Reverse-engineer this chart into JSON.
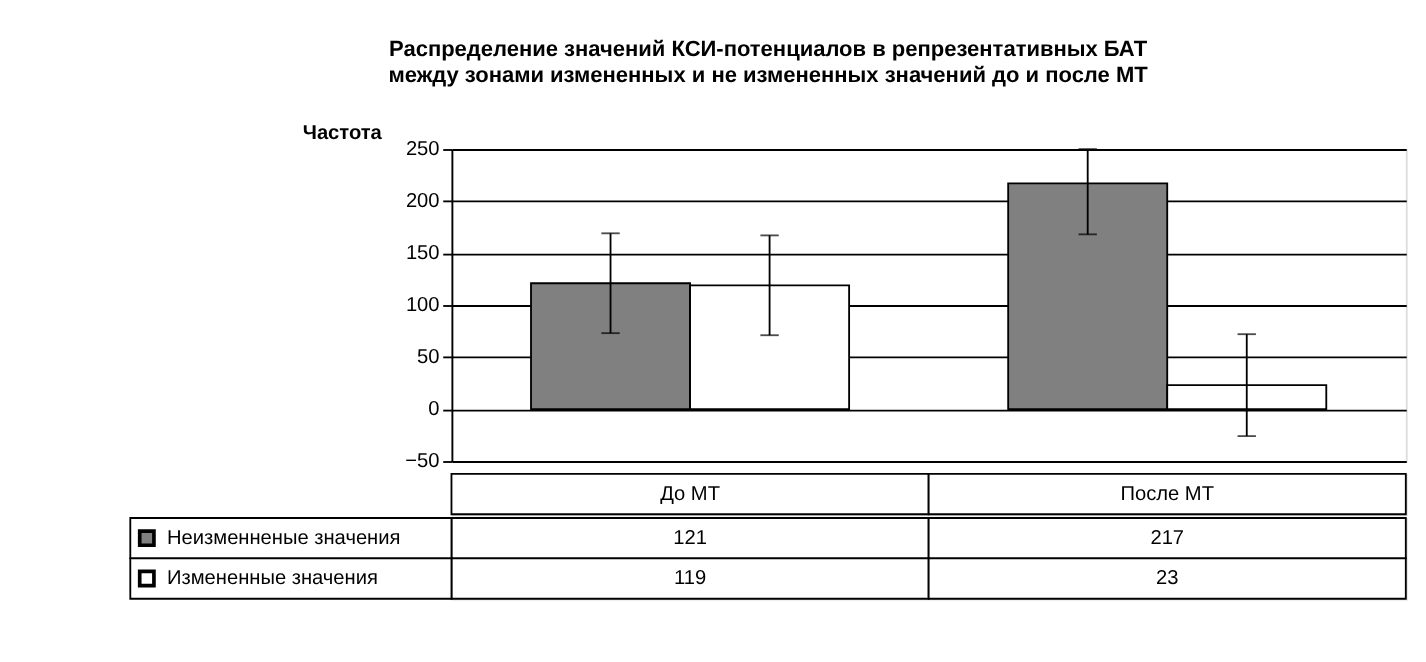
{
  "chart_data": {
    "type": "bar",
    "title": [
      "Распределение значений КСИ-потенциалов в репрезентативных БАТ",
      "между зонами измененных и не измененных значений до и после МТ"
    ],
    "ylabel": "Частота",
    "categories": [
      "До МТ",
      "После МТ"
    ],
    "series": [
      {
        "name": "Неизменненые значения",
        "color": "#808080",
        "values": [
          121,
          217
        ],
        "errors": [
          48,
          [
            168,
            250
          ]
        ]
      },
      {
        "name": "Измененные значения",
        "color": "#ffffff",
        "values": [
          119,
          23
        ],
        "errors": [
          48,
          49
        ]
      }
    ],
    "ylim": [
      -50,
      250
    ],
    "yticks": [
      -50,
      0,
      50,
      100,
      150,
      200,
      250
    ],
    "grid": "y",
    "legend": "bottom",
    "data_labels": true
  }
}
